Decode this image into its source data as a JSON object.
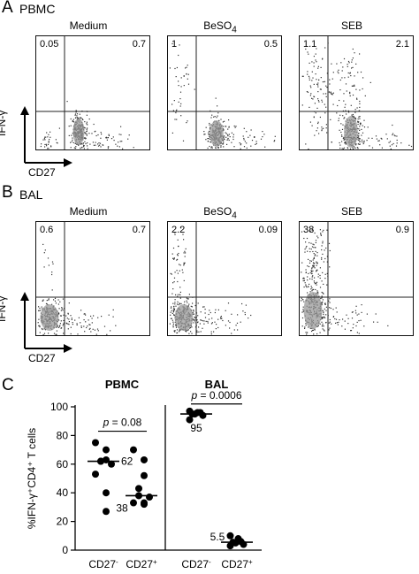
{
  "panels": {
    "A": {
      "letter": "A",
      "group": "PBMC",
      "conditions": [
        {
          "name": "Medium",
          "sub": "",
          "ul": "0.05",
          "ur": "0.7"
        },
        {
          "name": "BeSO",
          "sub": "4",
          "ul": "1",
          "ur": "0.5"
        },
        {
          "name": "SEB",
          "sub": "",
          "ul": "1.1",
          "ur": "2.1"
        }
      ],
      "ylabel": "IFN-γ",
      "xlabel": "CD27"
    },
    "B": {
      "letter": "B",
      "group": "BAL",
      "conditions": [
        {
          "name": "Medium",
          "sub": "",
          "ul": "0.6",
          "ur": "0.7"
        },
        {
          "name": "BeSO",
          "sub": "4",
          "ul": "2.2",
          "ur": "0.09"
        },
        {
          "name": "SEB",
          "sub": "",
          "ul": "38",
          "ur": "0.9"
        }
      ],
      "ylabel": "IFN-γ",
      "xlabel": "CD27"
    },
    "C": {
      "letter": "C"
    }
  },
  "chart_data": {
    "type": "scatter",
    "title": "",
    "ylabel": "%IFN-γ⁺CD4⁺ T cells",
    "ylim": [
      0,
      100
    ],
    "yticks": [
      0,
      20,
      40,
      60,
      80,
      100
    ],
    "groups": [
      {
        "label": "PBMC",
        "p_label": "p = 0.08",
        "p_italic": "p",
        "p_rest": " = 0.08"
      },
      {
        "label": "BAL",
        "p_label": "p = 0.0006",
        "p_italic": "p",
        "p_rest": " = 0.0006"
      }
    ],
    "categories": [
      {
        "label": "CD27",
        "sign": "-",
        "group": 0,
        "values": [
          75,
          70,
          63,
          62,
          62,
          60,
          53,
          40,
          27
        ],
        "median": 62,
        "median_label": "62"
      },
      {
        "label": "CD27",
        "sign": "+",
        "group": 0,
        "values": [
          70,
          63,
          52,
          43,
          38,
          37,
          33,
          33,
          32
        ],
        "median": 38,
        "median_label": "38"
      },
      {
        "label": "CD27",
        "sign": "-",
        "group": 1,
        "values": [
          97,
          96,
          96,
          95,
          95,
          94,
          91
        ],
        "median": 95,
        "median_label": "95"
      },
      {
        "label": "CD27",
        "sign": "+",
        "group": 1,
        "values": [
          10,
          8,
          6,
          5.5,
          5,
          4,
          3
        ],
        "median": 5.5,
        "median_label": "5.5"
      }
    ]
  }
}
